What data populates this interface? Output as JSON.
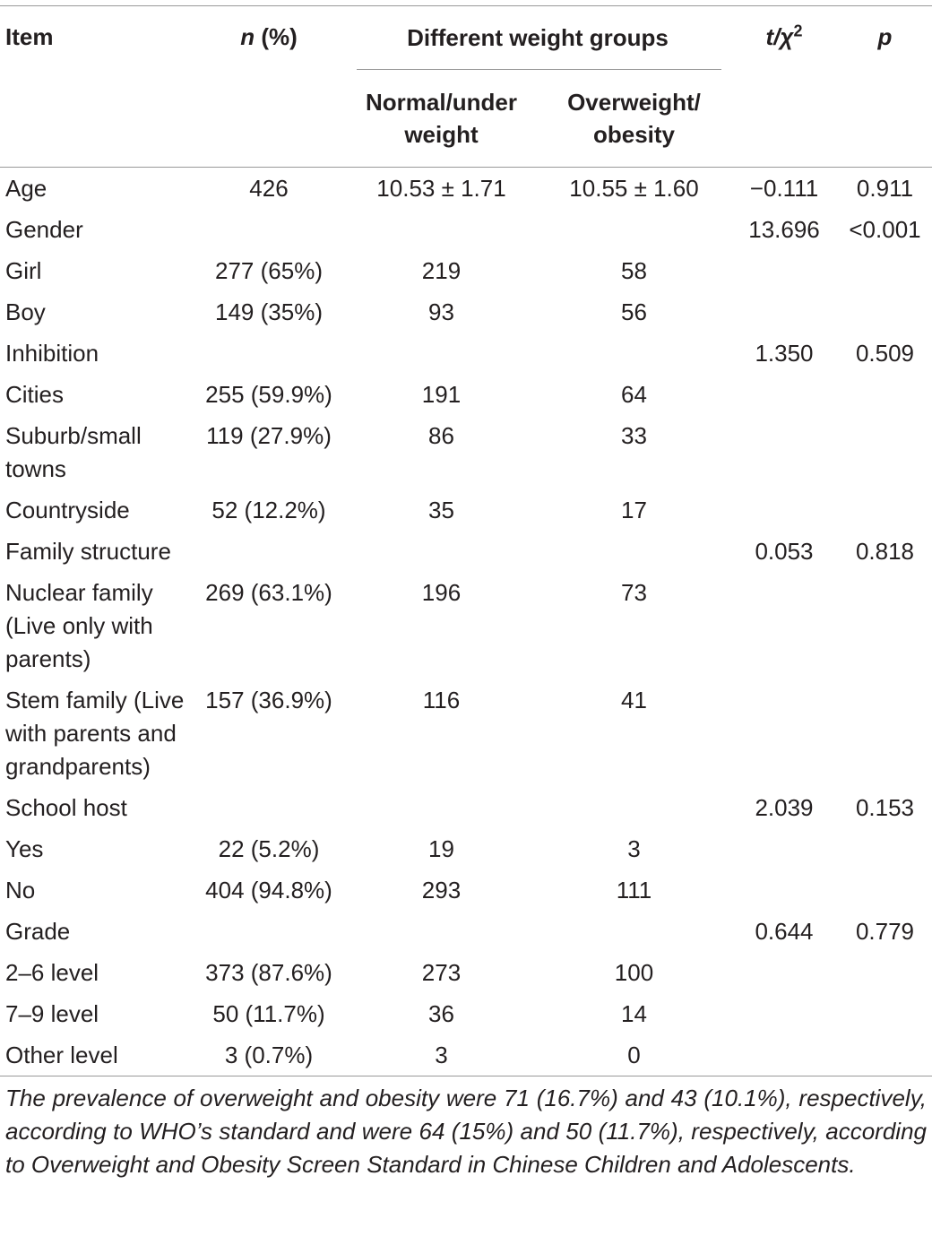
{
  "table": {
    "header": {
      "item": "Item",
      "n": {
        "var": "n",
        "unit": "(%)"
      },
      "group": "Different weight groups",
      "normal": "Normal/under weight",
      "over": "Overweight/ obesity",
      "stat": {
        "var": "t/χ",
        "sup": "2"
      },
      "p": "p"
    },
    "rows": [
      [
        "Age",
        "426",
        "10.53 ± 1.71",
        "10.55 ± 1.60",
        "−0.111",
        "0.911"
      ],
      [
        "Gender",
        null,
        null,
        null,
        "13.696",
        "<0.001"
      ],
      [
        "Girl",
        "277 (65%)",
        "219",
        "58",
        null,
        null
      ],
      [
        "Boy",
        "149 (35%)",
        "93",
        "56",
        null,
        null
      ],
      [
        "Inhibition",
        null,
        null,
        null,
        "1.350",
        "0.509"
      ],
      [
        "Cities",
        "255 (59.9%)",
        "191",
        "64",
        null,
        null
      ],
      [
        "Suburb/small towns",
        "119 (27.9%)",
        "86",
        "33",
        null,
        null
      ],
      [
        "Countryside",
        "52 (12.2%)",
        "35",
        "17",
        null,
        null
      ],
      [
        "Family structure",
        null,
        null,
        null,
        "0.053",
        "0.818"
      ],
      [
        "Nuclear family (Live only with parents)",
        "269 (63.1%)",
        "196",
        "73",
        null,
        null
      ],
      [
        "Stem family (Live with parents and grandparents)",
        "157 (36.9%)",
        "116",
        "41",
        null,
        null
      ],
      [
        "School host",
        null,
        null,
        null,
        "2.039",
        "0.153"
      ],
      [
        "Yes",
        "22 (5.2%)",
        "19",
        "3",
        null,
        null
      ],
      [
        "No",
        "404 (94.8%)",
        "293",
        "111",
        null,
        null
      ],
      [
        "Grade",
        null,
        null,
        null,
        "0.644",
        "0.779"
      ],
      [
        "2–6 level",
        "373 (87.6%)",
        "273",
        "100",
        null,
        null
      ],
      [
        "7–9 level",
        "50 (11.7%)",
        "36",
        "14",
        null,
        null
      ],
      [
        "Other level",
        "3 (0.7%)",
        "3",
        "0",
        null,
        null
      ]
    ],
    "footnote": "The prevalence of overweight and obesity were 71 (16.7%) and 43 (10.1%), respectively, according to WHO’s standard and were 64 (15%) and 50 (11.7%), respectively, according to Overweight and Obesity Screen Standard in Chinese Children and Adolescents."
  }
}
